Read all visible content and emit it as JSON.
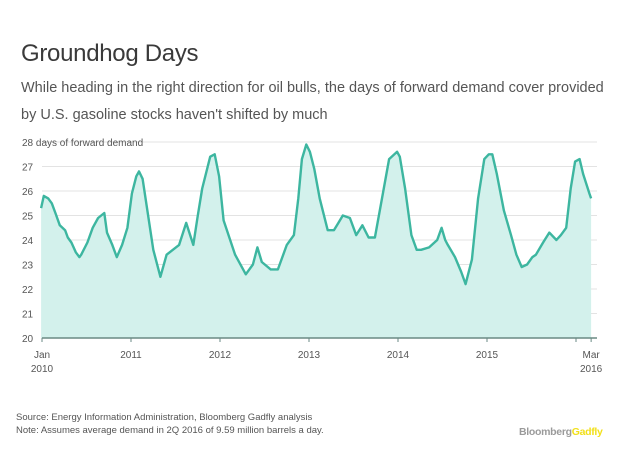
{
  "title": "Groundhog Days",
  "subtitle": "While heading in the right direction for oil bulls, the days of forward demand cover provided by U.S. gasoline stocks haven't shifted by much",
  "footer": {
    "source": "Source: Energy Information Administration, Bloomberg Gadfly analysis",
    "note": "Note: Assumes average demand in 2Q 2016 of 9.59 million barrels a day."
  },
  "logo": {
    "part1": "Bloomberg",
    "part2": "Gadfly"
  },
  "colors": {
    "line": "#3db6a0",
    "fill": "#d3f1ec",
    "grid": "#e3e3e3",
    "axis": "#6a8a84"
  },
  "chart_data": {
    "type": "area",
    "title": "Groundhog Days",
    "ylabel": "28 days of forward demand",
    "xlabel": "",
    "ylim": [
      20,
      28
    ],
    "xlim": [
      2010.0,
      2016.17
    ],
    "yticks": [
      20,
      21,
      22,
      23,
      24,
      25,
      26,
      27,
      28
    ],
    "ytick_labels": [
      "20",
      "21",
      "22",
      "23",
      "24",
      "25",
      "26",
      "27",
      "28 days of forward demand"
    ],
    "xticks": [
      {
        "x": 2010.0,
        "label": [
          "Jan",
          "2010"
        ]
      },
      {
        "x": 2011.0,
        "label": [
          "2011"
        ]
      },
      {
        "x": 2012.0,
        "label": [
          "2012"
        ]
      },
      {
        "x": 2013.0,
        "label": [
          "2013"
        ]
      },
      {
        "x": 2014.0,
        "label": [
          "2014"
        ]
      },
      {
        "x": 2015.0,
        "label": [
          "2015"
        ]
      },
      {
        "x": 2016.0,
        "label": []
      },
      {
        "x": 2016.17,
        "label": [
          "Mar",
          "2016"
        ]
      }
    ],
    "grid": true,
    "series": [
      {
        "name": "Days of forward demand cover",
        "x": [
          2009.99,
          2010.02,
          2010.07,
          2010.11,
          2010.15,
          2010.2,
          2010.26,
          2010.29,
          2010.33,
          2010.38,
          2010.42,
          2010.44,
          2010.51,
          2010.57,
          2010.63,
          2010.7,
          2010.73,
          2010.79,
          2010.84,
          2010.9,
          2010.96,
          2011.01,
          2011.06,
          2011.09,
          2011.13,
          2011.18,
          2011.25,
          2011.33,
          2011.4,
          2011.54,
          2011.62,
          2011.7,
          2011.75,
          2011.8,
          2011.89,
          2011.94,
          2011.99,
          2012.04,
          2012.17,
          2012.29,
          2012.37,
          2012.42,
          2012.47,
          2012.57,
          2012.65,
          2012.75,
          2012.83,
          2012.88,
          2012.92,
          2012.97,
          2013.01,
          2013.06,
          2013.12,
          2013.21,
          2013.28,
          2013.33,
          2013.38,
          2013.46,
          2013.53,
          2013.6,
          2013.67,
          2013.74,
          2013.82,
          2013.9,
          2013.99,
          2014.02,
          2014.08,
          2014.15,
          2014.21,
          2014.26,
          2014.35,
          2014.44,
          2014.49,
          2014.53,
          2014.56,
          2014.64,
          2014.71,
          2014.76,
          2014.83,
          2014.9,
          2014.97,
          2015.02,
          2015.06,
          2015.11,
          2015.19,
          2015.27,
          2015.33,
          2015.39,
          2015.45,
          2015.51,
          2015.55,
          2015.63,
          2015.7,
          2015.78,
          2015.83,
          2015.89,
          2015.94,
          2015.99,
          2016.04,
          2016.08,
          2016.15,
          2016.17
        ],
        "values": [
          25.3,
          25.8,
          25.7,
          25.5,
          25.1,
          24.6,
          24.4,
          24.1,
          23.9,
          23.5,
          23.3,
          23.4,
          23.9,
          24.5,
          24.9,
          25.1,
          24.3,
          23.8,
          23.3,
          23.8,
          24.5,
          25.9,
          26.6,
          26.8,
          26.5,
          25.3,
          23.6,
          22.5,
          23.4,
          23.8,
          24.7,
          23.8,
          25.0,
          26.1,
          27.4,
          27.5,
          26.6,
          24.8,
          23.4,
          22.6,
          23.0,
          23.7,
          23.1,
          22.8,
          22.8,
          23.8,
          24.2,
          25.7,
          27.3,
          27.9,
          27.6,
          26.9,
          25.7,
          24.4,
          24.4,
          24.7,
          25.0,
          24.9,
          24.2,
          24.6,
          24.1,
          24.1,
          25.7,
          27.3,
          27.6,
          27.4,
          26.1,
          24.2,
          23.6,
          23.6,
          23.7,
          24.0,
          24.5,
          24.0,
          23.8,
          23.3,
          22.7,
          22.2,
          23.2,
          25.7,
          27.3,
          27.5,
          27.5,
          26.7,
          25.2,
          24.2,
          23.4,
          22.9,
          23.0,
          23.3,
          23.4,
          23.9,
          24.3,
          24.0,
          24.2,
          24.5,
          26.1,
          27.2,
          27.3,
          26.7,
          25.9,
          25.7
        ]
      }
    ]
  }
}
